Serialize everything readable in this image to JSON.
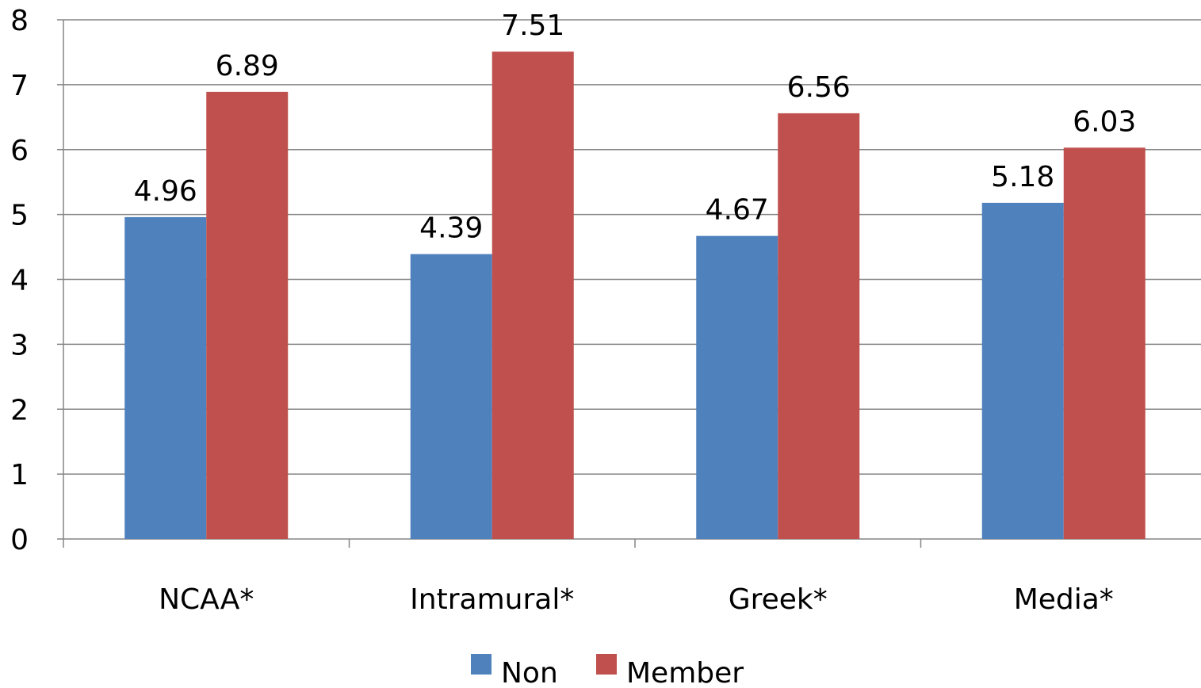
{
  "chart_data": {
    "type": "bar",
    "title": "",
    "xlabel": "",
    "ylabel": "",
    "categories": [
      "NCAA*",
      "Intramural*",
      "Greek*",
      "Media*"
    ],
    "series": [
      {
        "name": "Non",
        "values": [
          4.96,
          4.39,
          4.67,
          5.18
        ],
        "color": "#4F81BD"
      },
      {
        "name": "Member",
        "values": [
          6.89,
          7.51,
          6.56,
          6.03
        ],
        "color": "#C0504D"
      }
    ],
    "ylim": [
      0,
      8
    ],
    "yticks": [
      0,
      1,
      2,
      3,
      4,
      5,
      6,
      7,
      8
    ],
    "grid": true,
    "legend_position": "bottom",
    "data_labels": true,
    "gridline_color": "#868686"
  }
}
